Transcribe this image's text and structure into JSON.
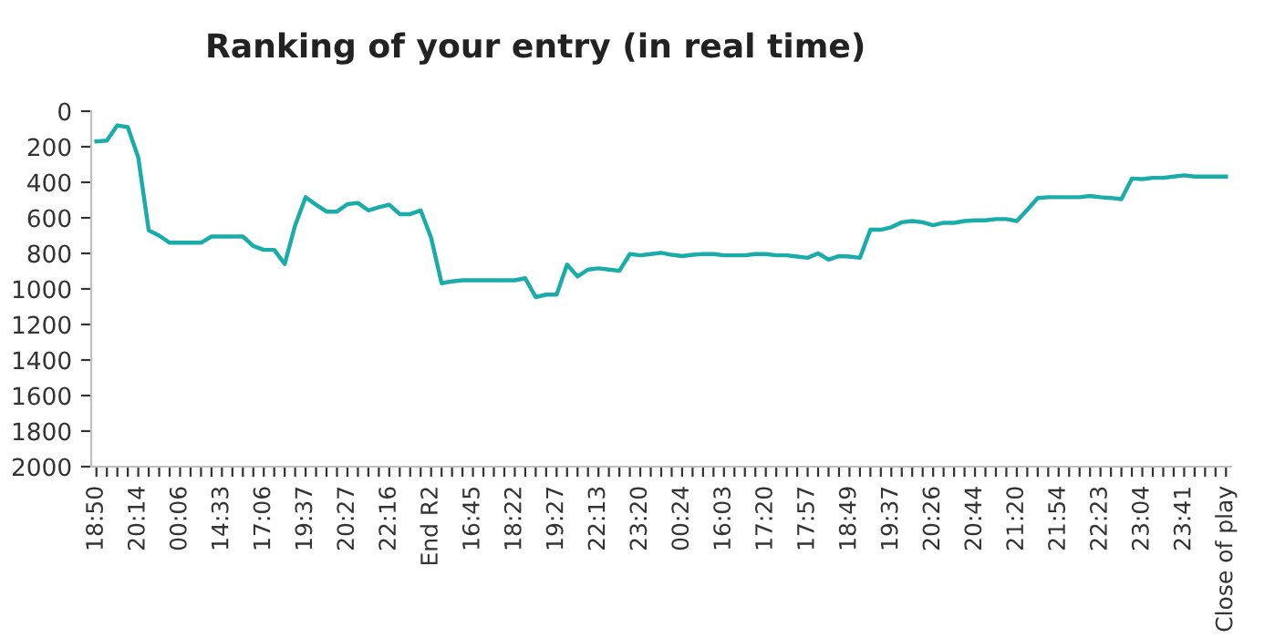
{
  "chart_data": {
    "type": "line",
    "title": "Ranking of your entry (in real time)",
    "categories": [
      "18:50",
      null,
      null,
      null,
      "20:14",
      null,
      null,
      null,
      "00:06",
      null,
      null,
      null,
      "14:33",
      null,
      null,
      null,
      "17:06",
      null,
      null,
      null,
      "19:37",
      null,
      null,
      null,
      "20:27",
      null,
      null,
      null,
      "22:16",
      null,
      null,
      null,
      "End R2",
      null,
      null,
      null,
      "16:45",
      null,
      null,
      null,
      "18:22",
      null,
      null,
      null,
      "19:27",
      null,
      null,
      null,
      "22:13",
      null,
      null,
      null,
      "23:20",
      null,
      null,
      null,
      "00:24",
      null,
      null,
      null,
      "16:03",
      null,
      null,
      null,
      "17:20",
      null,
      null,
      null,
      "17:57",
      null,
      null,
      null,
      "18:49",
      null,
      null,
      null,
      "19:37",
      null,
      null,
      null,
      "20:26",
      null,
      null,
      null,
      "20:44",
      null,
      null,
      null,
      "21:20",
      null,
      null,
      null,
      "21:54",
      null,
      null,
      null,
      "22:23",
      null,
      null,
      null,
      "23:04",
      null,
      null,
      null,
      "23:41",
      null,
      null,
      null,
      "Close of play"
    ],
    "series": [
      {
        "color": "#1aaca8",
        "values": [
          170,
          165,
          80,
          90,
          260,
          670,
          700,
          740,
          740,
          740,
          740,
          705,
          705,
          705,
          705,
          758,
          780,
          780,
          860,
          642,
          484,
          526,
          565,
          565,
          523,
          516,
          558,
          540,
          526,
          579,
          579,
          558,
          712,
          968,
          958,
          951,
          951,
          951,
          951,
          951,
          951,
          940,
          1046,
          1032,
          1032,
          863,
          930,
          891,
          884,
          891,
          898,
          804,
          811,
          804,
          797,
          808,
          815,
          808,
          804,
          804,
          811,
          811,
          811,
          804,
          804,
          811,
          811,
          818,
          825,
          800,
          835,
          815,
          818,
          825,
          667,
          667,
          653,
          625,
          618,
          625,
          642,
          628,
          628,
          618,
          614,
          614,
          607,
          607,
          618,
          555,
          488,
          484,
          484,
          484,
          484,
          477,
          484,
          488,
          495,
          379,
          382,
          375,
          375,
          368,
          361,
          368,
          368,
          368,
          368
        ]
      }
    ],
    "ylim": [
      2000,
      0
    ],
    "yticks": [
      0,
      200,
      400,
      600,
      800,
      1000,
      1200,
      1400,
      1600,
      1800,
      2000
    ],
    "grid": false,
    "legend": false,
    "marker": "none",
    "line_style": "solid"
  }
}
